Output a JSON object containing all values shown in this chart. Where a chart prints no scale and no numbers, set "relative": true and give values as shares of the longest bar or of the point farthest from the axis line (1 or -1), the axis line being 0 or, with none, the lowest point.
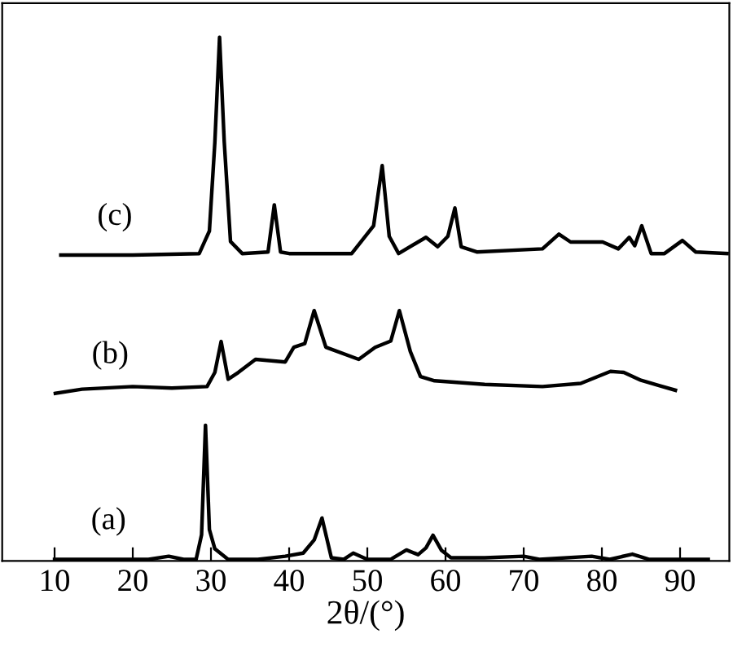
{
  "chart_data": {
    "type": "line",
    "relative": true,
    "xlabel": "2θ/(°)",
    "xlim": [
      3.3,
      96.3
    ],
    "xticks": [
      10,
      20,
      30,
      40,
      50,
      60,
      70,
      80,
      90
    ],
    "tick_labels": "x",
    "grid": false,
    "legend": false,
    "marker": "none",
    "line_style": "solid",
    "series": [
      {
        "name": "(a)",
        "color": "#000000",
        "x": [
          10,
          22,
          24.6,
          26.5,
          28.1,
          28.8,
          29.3,
          29.8,
          30.5,
          32.2,
          36,
          39.5,
          41.8,
          43.2,
          44.2,
          45.4,
          47,
          48.2,
          50,
          53,
          55,
          56.5,
          57.5,
          58.4,
          59.5,
          60.7,
          65,
          70,
          72,
          78.7,
          81,
          83.9,
          86,
          93.6
        ],
        "values": [
          0.003,
          0.003,
          0.009,
          0.003,
          0.003,
          0.05,
          0.259,
          0.06,
          0.023,
          0.003,
          0.003,
          0.009,
          0.015,
          0.04,
          0.082,
          0.006,
          0.003,
          0.015,
          0.003,
          0.003,
          0.021,
          0.012,
          0.025,
          0.049,
          0.02,
          0.006,
          0.006,
          0.009,
          0.003,
          0.009,
          0.003,
          0.013,
          0.003,
          0.003
        ]
      },
      {
        "name": "(b)",
        "color": "#000000",
        "x": [
          10.1,
          13.5,
          20,
          25,
          29.5,
          30.5,
          31.3,
          32.2,
          33.5,
          35.7,
          39.5,
          40.6,
          42,
          43.2,
          44.7,
          48.9,
          51,
          53,
          54.1,
          55.5,
          56.8,
          58.6,
          65,
          72.4,
          77.3,
          81.1,
          82.8,
          85,
          87.3,
          89.4
        ],
        "values": [
          0.32,
          0.328,
          0.333,
          0.33,
          0.333,
          0.36,
          0.419,
          0.347,
          0.36,
          0.385,
          0.38,
          0.408,
          0.415,
          0.478,
          0.408,
          0.385,
          0.408,
          0.42,
          0.478,
          0.4,
          0.352,
          0.344,
          0.337,
          0.333,
          0.339,
          0.362,
          0.36,
          0.345,
          0.335,
          0.326
        ]
      },
      {
        "name": "(c)",
        "color": "#000000",
        "x": [
          10.8,
          20,
          28.5,
          29.8,
          30.5,
          31.1,
          31.7,
          32.5,
          34,
          37.3,
          38.1,
          38.9,
          40,
          48,
          50.8,
          51.9,
          52.8,
          54,
          57.5,
          59,
          60.3,
          61.2,
          62,
          64,
          72.4,
          74.5,
          76,
          80.1,
          82.1,
          83.5,
          84.2,
          85.1,
          86.3,
          88,
          90.3,
          92,
          96
        ],
        "values": [
          0.584,
          0.584,
          0.587,
          0.63,
          0.8,
          1.0,
          0.8,
          0.61,
          0.587,
          0.59,
          0.68,
          0.59,
          0.587,
          0.587,
          0.64,
          0.755,
          0.62,
          0.587,
          0.618,
          0.6,
          0.62,
          0.674,
          0.6,
          0.59,
          0.596,
          0.624,
          0.609,
          0.609,
          0.596,
          0.618,
          0.602,
          0.64,
          0.587,
          0.587,
          0.612,
          0.59,
          0.587
        ]
      }
    ]
  }
}
